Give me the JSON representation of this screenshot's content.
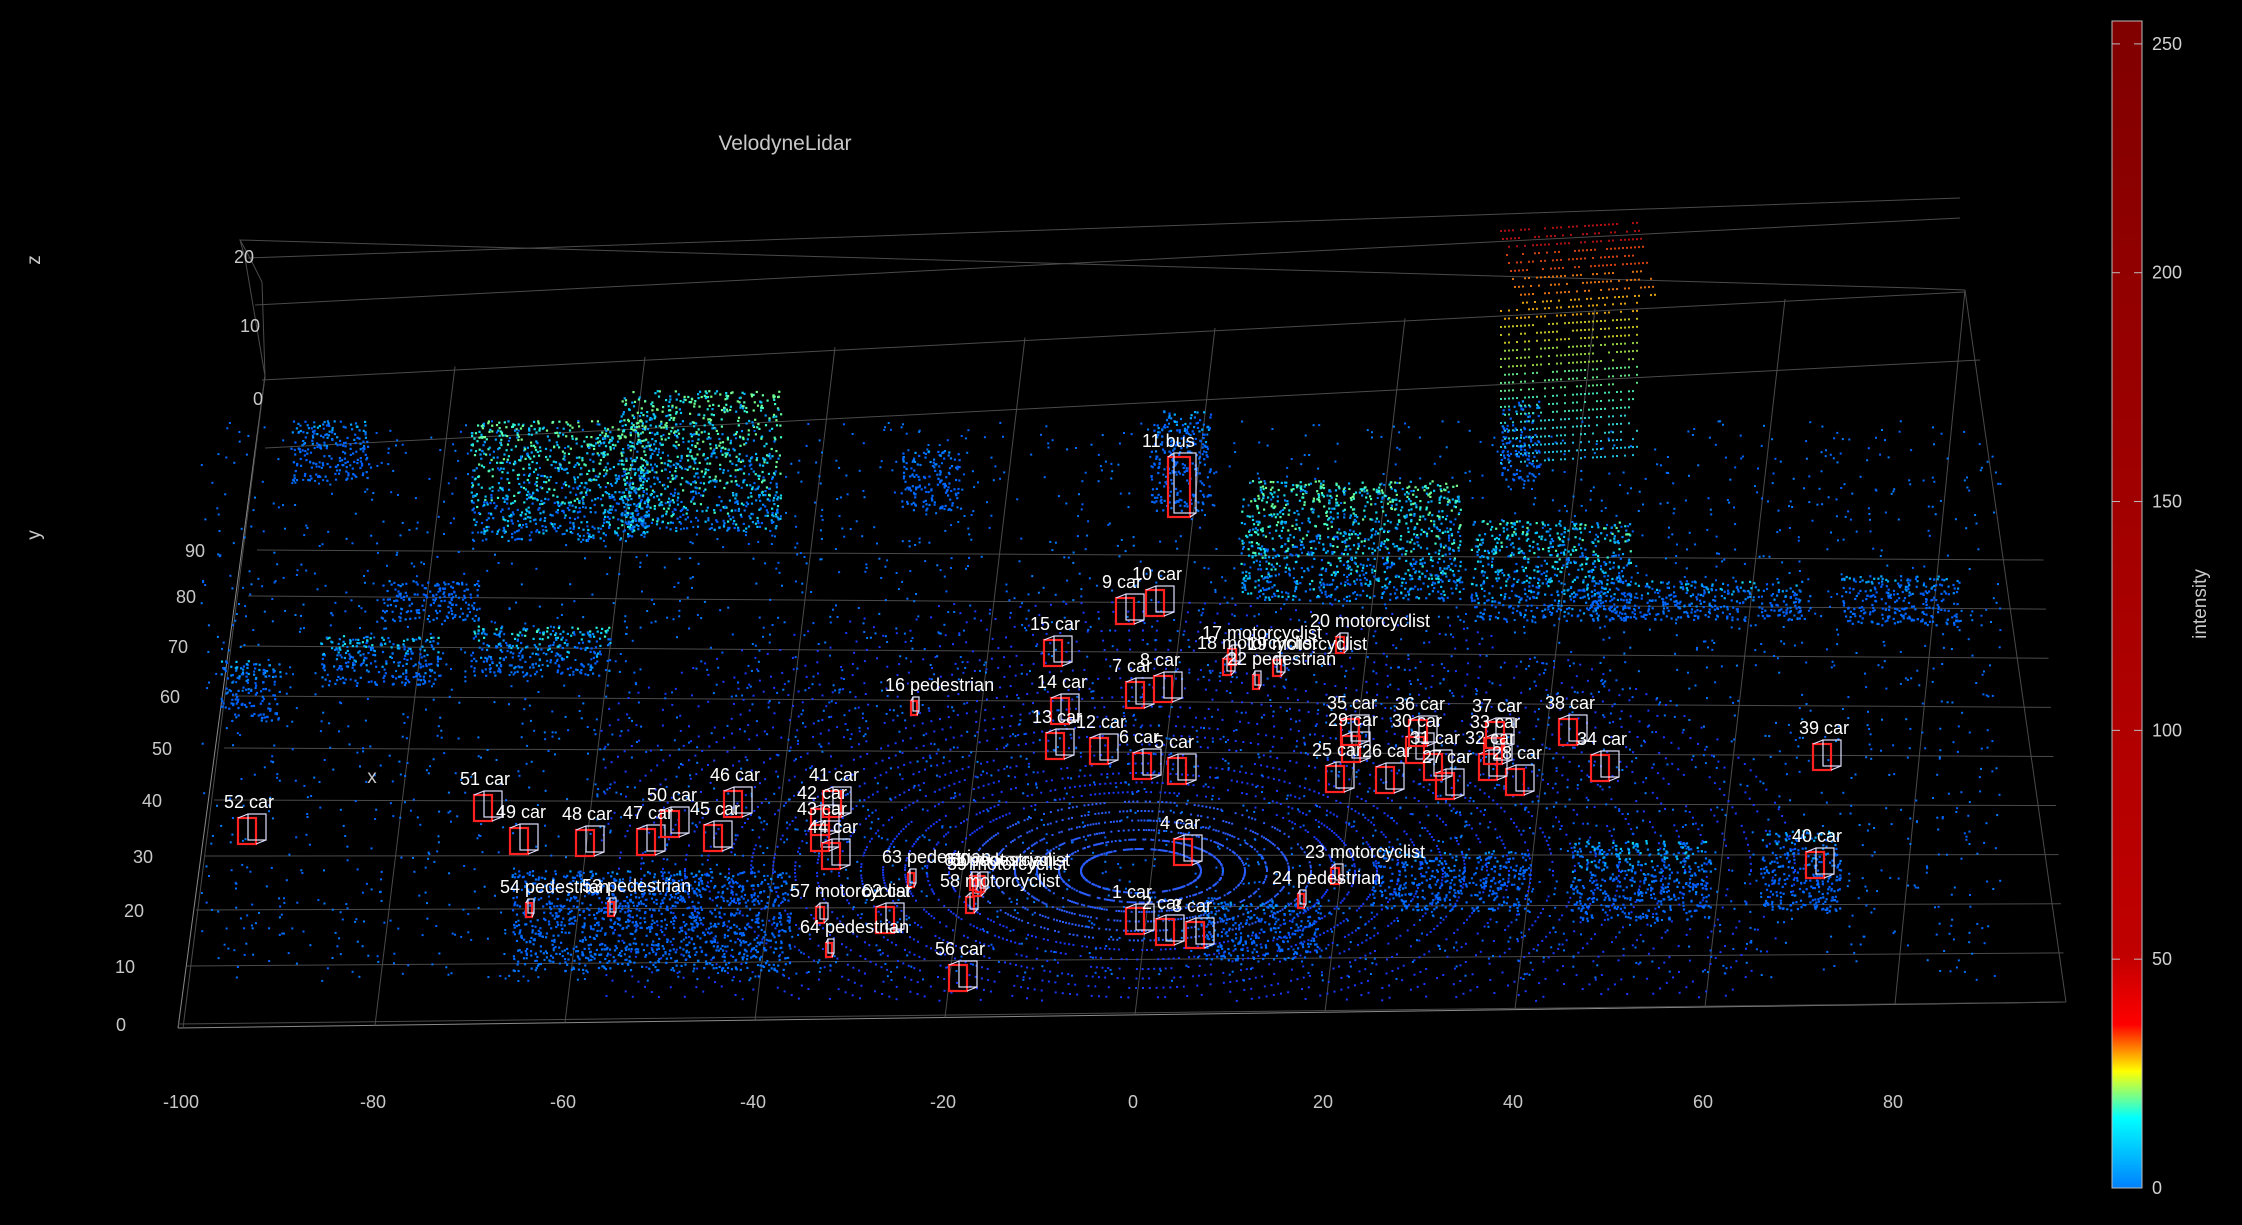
{
  "figure": {
    "title": "VelodyneLidar",
    "xlabel": "x",
    "ylabel": "y",
    "zlabel": "z",
    "x_ticks": [
      "-100",
      "-80",
      "-60",
      "-40",
      "-20",
      "0",
      "20",
      "40",
      "60",
      "80"
    ],
    "y_ticks": [
      "0",
      "10",
      "20",
      "30",
      "40",
      "50",
      "60",
      "70",
      "80",
      "90"
    ],
    "z_ticks": [
      "0",
      "10",
      "20"
    ],
    "background": "#000000",
    "grid_color": "#5a5a5a"
  },
  "colorbar": {
    "label": "intensity",
    "ticks": [
      "0",
      "50",
      "100",
      "150",
      "200",
      "250"
    ],
    "colormap": "jet",
    "range": [
      0,
      255
    ]
  },
  "labels": [
    {
      "id": "1",
      "text": "1 car",
      "type": "car"
    },
    {
      "id": "2",
      "text": "2 car",
      "type": "car"
    },
    {
      "id": "3",
      "text": "3 car",
      "type": "car"
    },
    {
      "id": "4",
      "text": "4 car",
      "type": "car"
    },
    {
      "id": "5",
      "text": "5 car",
      "type": "car"
    },
    {
      "id": "6",
      "text": "6 car",
      "type": "car"
    },
    {
      "id": "7",
      "text": "7 car",
      "type": "car"
    },
    {
      "id": "8",
      "text": "8 car",
      "type": "car"
    },
    {
      "id": "9",
      "text": "9 car",
      "type": "car"
    },
    {
      "id": "10",
      "text": "10 car",
      "type": "car"
    },
    {
      "id": "11",
      "text": "11 bus",
      "type": "bus"
    },
    {
      "id": "12",
      "text": "12 car",
      "type": "car"
    },
    {
      "id": "13",
      "text": "13 car",
      "type": "car"
    },
    {
      "id": "14",
      "text": "14 car",
      "type": "car"
    },
    {
      "id": "15",
      "text": "15 car",
      "type": "car"
    },
    {
      "id": "16",
      "text": "16 pedestrian",
      "type": "pedestrian"
    },
    {
      "id": "17",
      "text": "17 motorcyclist",
      "type": "motorcyclist"
    },
    {
      "id": "18",
      "text": "18 motorcyclist",
      "type": "motorcyclist"
    },
    {
      "id": "19",
      "text": "19 motorcyclist",
      "type": "motorcyclist"
    },
    {
      "id": "20",
      "text": "20 motorcyclist",
      "type": "motorcyclist"
    },
    {
      "id": "22",
      "text": "22 pedestrian",
      "type": "pedestrian"
    },
    {
      "id": "23",
      "text": "23 motorcyclist",
      "type": "motorcyclist"
    },
    {
      "id": "24",
      "text": "24 pedestrian",
      "type": "pedestrian"
    },
    {
      "id": "25",
      "text": "25 car",
      "type": "car"
    },
    {
      "id": "26",
      "text": "26 car",
      "type": "car"
    },
    {
      "id": "27",
      "text": "27 car",
      "type": "car"
    },
    {
      "id": "28",
      "text": "28 car",
      "type": "car"
    },
    {
      "id": "29",
      "text": "29 car",
      "type": "car"
    },
    {
      "id": "30",
      "text": "30 car",
      "type": "car"
    },
    {
      "id": "31",
      "text": "31 car",
      "type": "car"
    },
    {
      "id": "32",
      "text": "32 car",
      "type": "car"
    },
    {
      "id": "33",
      "text": "33 car",
      "type": "car"
    },
    {
      "id": "34",
      "text": "34 car",
      "type": "car"
    },
    {
      "id": "35",
      "text": "35 car",
      "type": "car"
    },
    {
      "id": "36",
      "text": "36 car",
      "type": "car"
    },
    {
      "id": "37",
      "text": "37 car",
      "type": "car"
    },
    {
      "id": "38",
      "text": "38 car",
      "type": "car"
    },
    {
      "id": "39",
      "text": "39 car",
      "type": "car"
    },
    {
      "id": "40",
      "text": "40 car",
      "type": "car"
    },
    {
      "id": "41",
      "text": "41 car",
      "type": "car"
    },
    {
      "id": "42",
      "text": "42 car",
      "type": "car"
    },
    {
      "id": "43",
      "text": "43 car",
      "type": "car"
    },
    {
      "id": "44",
      "text": "44 car",
      "type": "car"
    },
    {
      "id": "45",
      "text": "45 car",
      "type": "car"
    },
    {
      "id": "46",
      "text": "46 car",
      "type": "car"
    },
    {
      "id": "47",
      "text": "47 car",
      "type": "car"
    },
    {
      "id": "48",
      "text": "48 car",
      "type": "car"
    },
    {
      "id": "49",
      "text": "49 car",
      "type": "car"
    },
    {
      "id": "50",
      "text": "50 car",
      "type": "car"
    },
    {
      "id": "51",
      "text": "51 car",
      "type": "car"
    },
    {
      "id": "52",
      "text": "52 car",
      "type": "car"
    },
    {
      "id": "53",
      "text": "53 pedestrian",
      "type": "pedestrian"
    },
    {
      "id": "54",
      "text": "54 pedestrian",
      "type": "pedestrian"
    },
    {
      "id": "56",
      "text": "56 car",
      "type": "car"
    },
    {
      "id": "57",
      "text": "57 motorcyclist",
      "type": "motorcyclist"
    },
    {
      "id": "58",
      "text": "58 motorcyclist",
      "type": "motorcyclist"
    },
    {
      "id": "59",
      "text": "59 motorcyclist",
      "type": "motorcyclist"
    },
    {
      "id": "60",
      "text": "60 motorcyclist",
      "type": "motorcyclist"
    },
    {
      "id": "61",
      "text": "61 pedestrian",
      "type": "pedestrian"
    },
    {
      "id": "62",
      "text": "62 car",
      "type": "car"
    },
    {
      "id": "63",
      "text": "63 pedestrian",
      "type": "pedestrian"
    },
    {
      "id": "64",
      "text": "64 pedestrian",
      "type": "pedestrian"
    }
  ]
}
